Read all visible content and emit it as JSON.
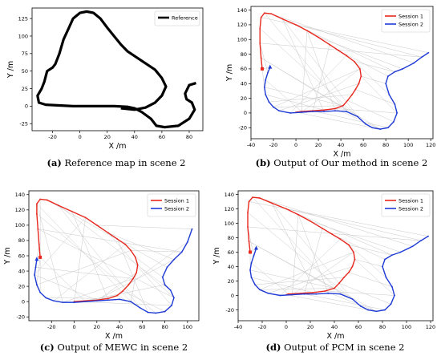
{
  "chart_data": [
    {
      "type": "line",
      "caption_label": "(a)",
      "caption": "Reference map in scene 2",
      "xlabel": "X /m",
      "ylabel": "Y /m",
      "xlim": [
        -35,
        90
      ],
      "ylim": [
        -35,
        140
      ],
      "xticks": [
        -20,
        0,
        20,
        40,
        60,
        80
      ],
      "yticks": [
        -25,
        0,
        25,
        50,
        75,
        100,
        125
      ],
      "legend": "top-right",
      "series": [
        {
          "name": "Reference",
          "color": "#000000",
          "x": [
            85,
            80,
            77,
            78,
            82,
            84,
            80,
            72,
            62,
            56,
            52,
            45,
            40,
            35,
            25,
            15,
            5,
            -5,
            -15,
            -25,
            -30,
            -31,
            -28,
            -26,
            -24,
            -20,
            -18,
            -15,
            -12,
            -8,
            -5,
            0,
            5,
            10,
            15,
            20,
            25,
            30,
            35,
            45,
            55,
            60,
            63,
            60,
            55,
            48,
            40,
            35,
            30
          ],
          "y": [
            33,
            30,
            18,
            10,
            5,
            -5,
            -18,
            -28,
            -30,
            -28,
            -18,
            -8,
            -3,
            -1,
            0,
            0,
            0,
            0,
            1,
            2,
            5,
            15,
            25,
            35,
            50,
            55,
            60,
            75,
            95,
            112,
            125,
            133,
            135,
            133,
            125,
            112,
            100,
            88,
            78,
            65,
            52,
            40,
            28,
            15,
            5,
            -2,
            -5,
            -4,
            -3
          ]
        }
      ]
    },
    {
      "type": "line",
      "caption_label": "(b)",
      "caption": "Output of Our method in scene 2",
      "xlabel": "X /m",
      "ylabel": "Y /m",
      "xlim": [
        -40,
        122
      ],
      "ylim": [
        -35,
        145
      ],
      "xticks": [
        -40,
        -20,
        0,
        20,
        40,
        60,
        80,
        100,
        120
      ],
      "yticks": [
        -20,
        0,
        20,
        40,
        60,
        80,
        100,
        120,
        140
      ],
      "legend": "top-right",
      "series": [
        {
          "name": "Session 1",
          "color": "#e8281e",
          "x": [
            -30,
            -31,
            -32,
            -32,
            -31,
            -28,
            -22,
            -12,
            0,
            10,
            20,
            30,
            38,
            45,
            52,
            57,
            58,
            56,
            53,
            50,
            46,
            42,
            35,
            25,
            15,
            5,
            0
          ],
          "y": [
            60,
            75,
            95,
            115,
            130,
            136,
            135,
            128,
            120,
            112,
            103,
            93,
            85,
            78,
            70,
            60,
            50,
            40,
            32,
            25,
            17,
            10,
            6,
            4,
            3,
            2,
            1
          ]
        },
        {
          "name": "Session 2",
          "color": "#1f3bd6",
          "x": [
            -23,
            -25,
            -27,
            -28,
            -27,
            -24,
            -20,
            -15,
            -5,
            5,
            15,
            25,
            35,
            45,
            55,
            62,
            68,
            75,
            82,
            87,
            90,
            88,
            83,
            80,
            82,
            88,
            95,
            105,
            112,
            118
          ],
          "y": [
            62,
            55,
            45,
            35,
            25,
            15,
            8,
            3,
            0,
            1,
            2,
            2,
            3,
            2,
            -5,
            -15,
            -20,
            -22,
            -20,
            -12,
            0,
            12,
            25,
            40,
            50,
            56,
            60,
            68,
            76,
            82
          ]
        }
      ]
    },
    {
      "type": "line",
      "caption_label": "(c)",
      "caption": "Output of MEWC in scene 2",
      "xlabel": "X /m",
      "ylabel": "Y /m",
      "xlim": [
        -40,
        110
      ],
      "ylim": [
        -25,
        145
      ],
      "xticks": [
        -20,
        0,
        20,
        40,
        60,
        80,
        100
      ],
      "yticks": [
        -20,
        0,
        20,
        40,
        60,
        80,
        100,
        120,
        140
      ],
      "legend": "top-right",
      "series": [
        {
          "name": "Session 1",
          "color": "#e8281e",
          "x": [
            -30,
            -31,
            -32,
            -33,
            -33,
            -30,
            -24,
            -14,
            -2,
            10,
            20,
            30,
            38,
            45,
            50,
            54,
            56,
            55,
            52,
            48,
            43,
            38,
            30,
            20,
            10,
            0
          ],
          "y": [
            58,
            75,
            95,
            115,
            128,
            134,
            133,
            126,
            118,
            110,
            100,
            90,
            82,
            75,
            67,
            58,
            48,
            38,
            30,
            22,
            14,
            8,
            4,
            2,
            1,
            0
          ]
        },
        {
          "name": "Session 2",
          "color": "#1f3bd6",
          "x": [
            -33,
            -34,
            -35,
            -33,
            -30,
            -25,
            -18,
            -10,
            0,
            10,
            20,
            30,
            40,
            50,
            58,
            65,
            72,
            80,
            86,
            88,
            85,
            80,
            78,
            82,
            88,
            95,
            100,
            104
          ],
          "y": [
            55,
            45,
            35,
            22,
            12,
            5,
            1,
            -1,
            -1,
            0,
            1,
            2,
            3,
            0,
            -8,
            -14,
            -15,
            -13,
            -5,
            5,
            15,
            22,
            32,
            45,
            55,
            65,
            78,
            95
          ]
        }
      ]
    },
    {
      "type": "line",
      "caption_label": "(d)",
      "caption": "Output of PCM in scene 2",
      "xlabel": "X /m",
      "ylabel": "Y /m",
      "xlim": [
        -40,
        122
      ],
      "ylim": [
        -35,
        145
      ],
      "xticks": [
        -40,
        -20,
        0,
        20,
        40,
        60,
        80,
        100,
        120
      ],
      "yticks": [
        -20,
        0,
        20,
        40,
        60,
        80,
        100,
        120,
        140
      ],
      "legend": "top-right",
      "series": [
        {
          "name": "Session 1",
          "color": "#e8281e",
          "x": [
            -30,
            -31,
            -32,
            -32,
            -31,
            -28,
            -22,
            -12,
            0,
            10,
            20,
            30,
            38,
            45,
            52,
            56,
            57,
            55,
            52,
            48,
            44,
            40,
            32,
            22,
            12,
            2,
            0
          ],
          "y": [
            60,
            75,
            95,
            115,
            130,
            136,
            135,
            128,
            120,
            112,
            103,
            93,
            85,
            78,
            70,
            60,
            50,
            40,
            32,
            25,
            17,
            10,
            6,
            4,
            3,
            2,
            1
          ]
        },
        {
          "name": "Session 2",
          "color": "#1f3bd6",
          "x": [
            -25,
            -27,
            -29,
            -30,
            -29,
            -26,
            -22,
            -15,
            -5,
            5,
            15,
            25,
            35,
            45,
            55,
            62,
            68,
            75,
            82,
            87,
            90,
            88,
            83,
            80,
            82,
            88,
            95,
            105,
            112,
            118
          ],
          "y": [
            65,
            55,
            45,
            35,
            25,
            15,
            8,
            3,
            0,
            1,
            2,
            2,
            3,
            2,
            -5,
            -15,
            -20,
            -22,
            -20,
            -12,
            0,
            12,
            25,
            40,
            50,
            56,
            60,
            68,
            76,
            82
          ]
        }
      ]
    }
  ]
}
